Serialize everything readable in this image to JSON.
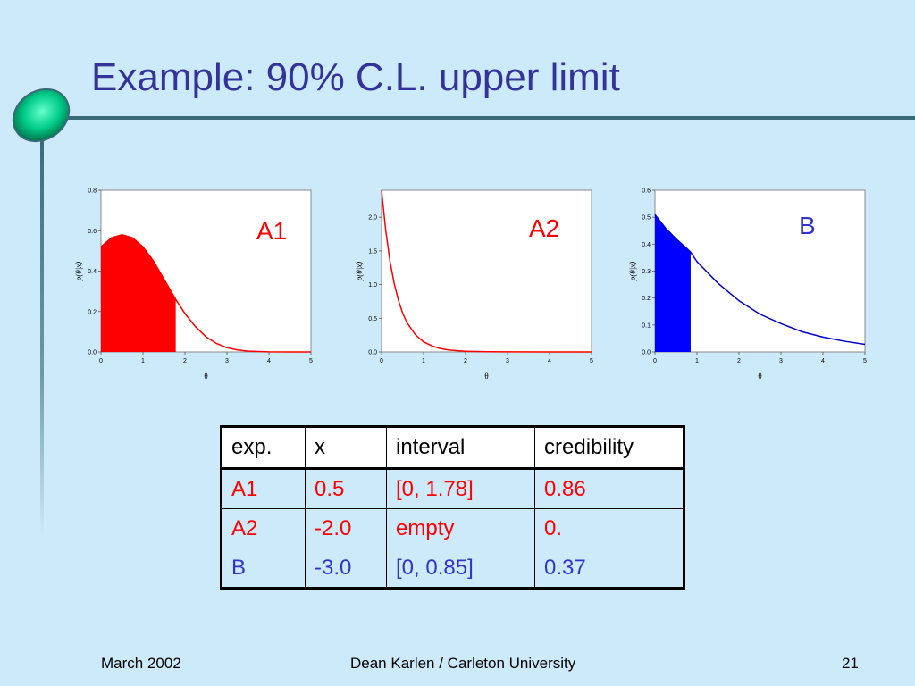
{
  "title": "Example: 90% C.L. upper limit",
  "chart_data": [
    {
      "type": "area",
      "label": "A1",
      "label_color": "#ff0000",
      "line_color": "#ff0000",
      "fill_color": "#ff0000",
      "x": [
        0,
        0.25,
        0.5,
        0.75,
        1,
        1.25,
        1.5,
        1.78,
        2,
        2.25,
        2.5,
        2.75,
        3,
        3.25,
        3.5,
        4,
        4.5,
        5
      ],
      "y": [
        0.52,
        0.565,
        0.58,
        0.565,
        0.52,
        0.45,
        0.36,
        0.26,
        0.19,
        0.125,
        0.075,
        0.042,
        0.021,
        0.01,
        0.004,
        0.0006,
        5e-05,
        0
      ],
      "fill_range": [
        0,
        1.78
      ],
      "xlabel": "θ",
      "ylabel": "p(θ|x)",
      "xlim": [
        0,
        5
      ],
      "ylim": [
        0,
        0.8
      ],
      "xticks": [
        "0",
        "1",
        "2",
        "3",
        "4",
        "5"
      ],
      "yticks": [
        "0.0",
        "0.2",
        "0.4",
        "0.6",
        "0.8"
      ]
    },
    {
      "type": "line",
      "label": "A2",
      "label_color": "#ff0000",
      "line_color": "#ff0000",
      "x": [
        0,
        0.1,
        0.2,
        0.3,
        0.4,
        0.5,
        0.6,
        0.8,
        1,
        1.2,
        1.4,
        1.6,
        1.8,
        2,
        2.5,
        3,
        4,
        5
      ],
      "y": [
        2.4,
        1.8,
        1.35,
        1.02,
        0.77,
        0.58,
        0.44,
        0.26,
        0.15,
        0.09,
        0.05,
        0.03,
        0.018,
        0.01,
        0.003,
        0.001,
        0,
        0
      ],
      "xlabel": "θ",
      "ylabel": "p(θ|x)",
      "xlim": [
        0,
        5
      ],
      "ylim": [
        0,
        2.4
      ],
      "xticks": [
        "0",
        "1",
        "2",
        "3",
        "4",
        "5"
      ],
      "yticks": [
        "0.0",
        "0.5",
        "1.0",
        "1.5",
        "2.0"
      ]
    },
    {
      "type": "area",
      "label": "B",
      "label_color": "#3333cc",
      "line_color": "#0000cc",
      "fill_color": "#0000ff",
      "x": [
        0,
        0.25,
        0.5,
        0.75,
        0.85,
        1,
        1.5,
        2,
        2.5,
        3,
        3.5,
        4,
        4.5,
        5
      ],
      "y": [
        0.51,
        0.46,
        0.42,
        0.385,
        0.37,
        0.335,
        0.255,
        0.19,
        0.14,
        0.105,
        0.075,
        0.055,
        0.04,
        0.028
      ],
      "fill_range": [
        0,
        0.85
      ],
      "xlabel": "θ",
      "ylabel": "p(θ|x)",
      "xlim": [
        0,
        5
      ],
      "ylim": [
        0,
        0.6
      ],
      "xticks": [
        "0",
        "1",
        "2",
        "3",
        "4",
        "5"
      ],
      "yticks": [
        "0.0",
        "0.1",
        "0.2",
        "0.3",
        "0.4",
        "0.5",
        "0.6"
      ]
    }
  ],
  "table": {
    "headers": [
      "exp.",
      "x",
      "interval",
      "credibility"
    ],
    "rows": [
      {
        "color": "red",
        "cells": [
          "A1",
          "0.5",
          "[0, 1.78]",
          "0.86"
        ]
      },
      {
        "color": "red",
        "cells": [
          "A2",
          "-2.0",
          "empty",
          "0."
        ]
      },
      {
        "color": "blue",
        "cells": [
          "B",
          "-3.0",
          "[0, 0.85]",
          "0.37"
        ]
      }
    ]
  },
  "footer": {
    "date": "March 2002",
    "author": "Dean Karlen / Carleton University",
    "page": "21"
  },
  "colors": {
    "background": "#cdeafb",
    "title": "#333399",
    "accent_oval": "#00cc88"
  }
}
